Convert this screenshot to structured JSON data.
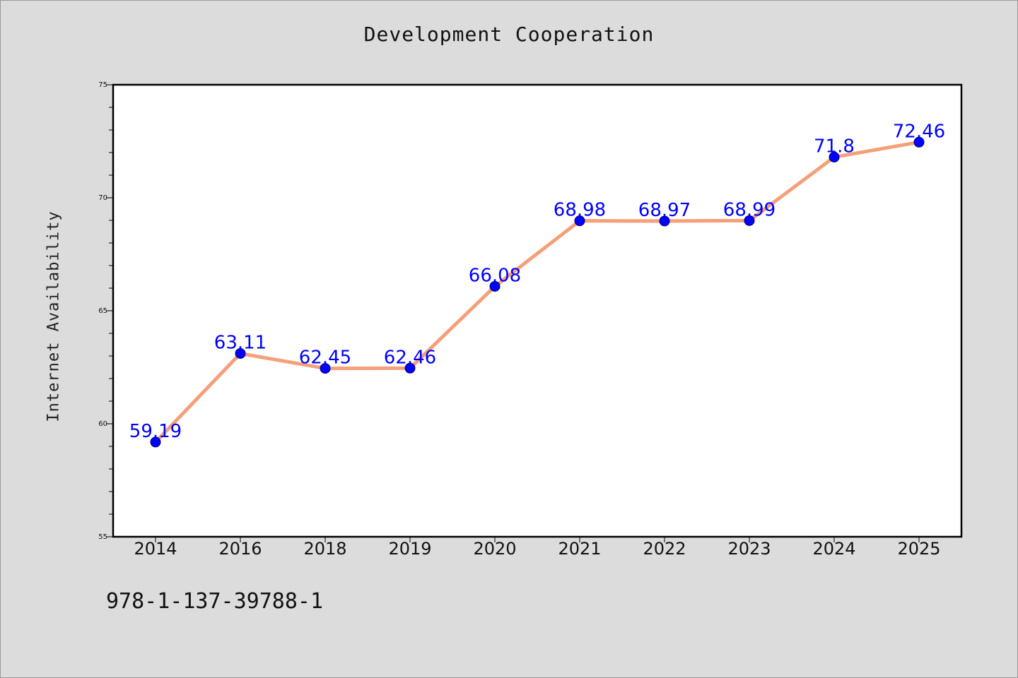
{
  "chart_data": {
    "type": "line",
    "title": "Development Cooperation",
    "xlabel": "",
    "ylabel": "Internet Availability",
    "categories": [
      "2014",
      "2016",
      "2018",
      "2019",
      "2020",
      "2021",
      "2022",
      "2023",
      "2024",
      "2025"
    ],
    "series": [
      {
        "values": [
          59.19,
          63.11,
          62.45,
          62.46,
          66.08,
          68.98,
          68.97,
          68.99,
          71.8,
          72.46
        ],
        "labels": [
          "59.19",
          "63.11",
          "62.45",
          "62.46",
          "66.08",
          "68.98",
          "68.97",
          "68.99",
          "71.8",
          "72.46"
        ]
      }
    ],
    "ylim": [
      55,
      75
    ],
    "yticks": [
      "55",
      "60",
      "65",
      "70",
      "75"
    ],
    "grid": false,
    "line_color": "#f4a07a",
    "marker_color": "#0000ff",
    "label_color": "#0000ff"
  },
  "footer": {
    "code": "978-1-137-39788-1"
  }
}
